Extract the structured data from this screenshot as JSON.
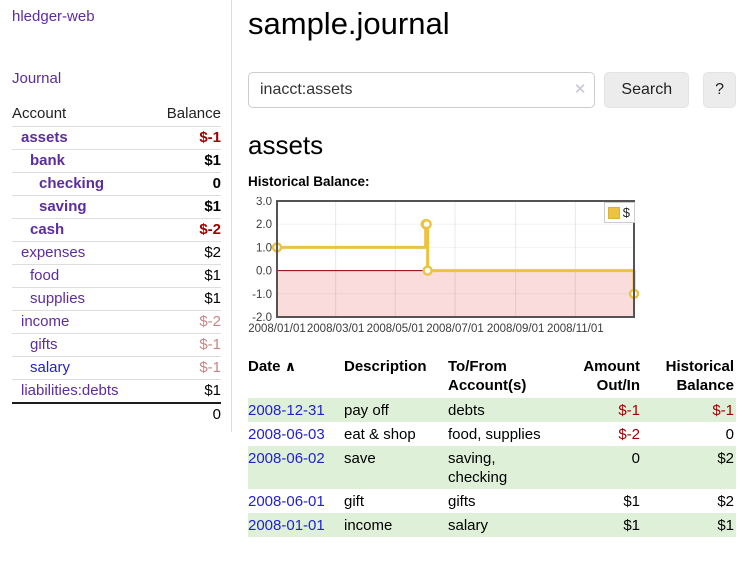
{
  "colors": {
    "link_purple": "#5c2d9e",
    "link_blue": "#2222cc",
    "negative": "#a10000",
    "negative_muted": "#c98585",
    "row_green": "#dff0d8",
    "chart_gold": "#edc240"
  },
  "sidebar": {
    "app_title": "hledger-web",
    "journal_label": "Journal",
    "headers": {
      "account": "Account",
      "balance": "Balance"
    },
    "rows": [
      {
        "name": "assets",
        "level": 1,
        "bold": true,
        "balance": "$-1",
        "balance_class": "neg-strong"
      },
      {
        "name": "bank",
        "level": 2,
        "bold": true,
        "balance": "$1",
        "balance_class": "strong"
      },
      {
        "name": "checking",
        "level": 3,
        "bold": true,
        "balance": "0",
        "balance_class": "strong"
      },
      {
        "name": "saving",
        "level": 3,
        "bold": true,
        "balance": "$1",
        "balance_class": "strong"
      },
      {
        "name": "cash",
        "level": 2,
        "bold": true,
        "balance": "$-2",
        "balance_class": "neg-strong"
      },
      {
        "name": "expenses",
        "level": 1,
        "bold": false,
        "balance": "$2",
        "balance_class": "plain"
      },
      {
        "name": "food",
        "level": 2,
        "bold": false,
        "balance": "$1",
        "balance_class": "plain"
      },
      {
        "name": "supplies",
        "level": 2,
        "bold": false,
        "balance": "$1",
        "balance_class": "plain"
      },
      {
        "name": "income",
        "level": 1,
        "bold": false,
        "balance": "$-2",
        "balance_class": "neg-muted"
      },
      {
        "name": "gifts",
        "level": 2,
        "bold": false,
        "balance": "$-1",
        "balance_class": "neg-muted"
      },
      {
        "name": "salary",
        "level": 2,
        "bold": false,
        "balance": "$-1",
        "balance_class": "neg-muted",
        "link_color": "blue"
      },
      {
        "name": "liabilities:debts",
        "level": 1,
        "bold": false,
        "balance": "$1",
        "balance_class": "plain"
      }
    ],
    "total": "0"
  },
  "main": {
    "title": "sample.journal",
    "search": {
      "value": "inacct:assets",
      "clear_glyph": "✕",
      "button_label": "Search",
      "help_label": "?"
    },
    "account_heading": "assets",
    "chart_label": "Historical Balance:"
  },
  "chart_data": {
    "type": "line",
    "step": true,
    "title": "Historical Balance:",
    "legend": {
      "position": "top-right"
    },
    "series": [
      {
        "name": "$",
        "points": [
          {
            "date": "2008-01-01",
            "day": 0,
            "value": 1
          },
          {
            "date": "2008-06-01",
            "day": 152,
            "value": 2
          },
          {
            "date": "2008-06-02",
            "day": 153,
            "value": 2
          },
          {
            "date": "2008-06-03",
            "day": 154,
            "value": 0
          },
          {
            "date": "2008-12-31",
            "day": 365,
            "value": -1
          }
        ]
      }
    ],
    "y_axis": {
      "range": [
        -2,
        3
      ],
      "ticks": [
        {
          "label": "3.0",
          "value": 3
        },
        {
          "label": "2.0",
          "value": 2
        },
        {
          "label": "1.0",
          "value": 1
        },
        {
          "label": "0.0",
          "value": 0
        },
        {
          "label": "-1.0",
          "value": -1
        },
        {
          "label": "-2.0",
          "value": -2
        }
      ]
    },
    "x_axis": {
      "range_days": [
        0,
        365
      ],
      "ticks": [
        {
          "label": "2008/01/01",
          "day": 0
        },
        {
          "label": "2008/03/01",
          "day": 60
        },
        {
          "label": "2008/05/01",
          "day": 121
        },
        {
          "label": "2008/07/01",
          "day": 182
        },
        {
          "label": "2008/09/01",
          "day": 244
        },
        {
          "label": "2008/11/01",
          "day": 305
        }
      ]
    },
    "colors": {
      "line": "#edc240",
      "negative_region": "#fadcdc",
      "zero_line": "#8b0000",
      "border": "#545454"
    }
  },
  "register": {
    "headers": {
      "date": "Date",
      "sort_icon": "∧",
      "description": "Description",
      "accounts": "To/From Account(s)",
      "amount": "Amount Out/In",
      "balance": "Historical Balance"
    },
    "rows": [
      {
        "date": "2008-12-31",
        "description": "pay off",
        "accounts": "debts",
        "amount": "$-1",
        "amount_neg": true,
        "balance": "$-1",
        "balance_neg": true,
        "shaded": true
      },
      {
        "date": "2008-06-03",
        "description": "eat & shop",
        "accounts": "food, supplies",
        "amount": "$-2",
        "amount_neg": true,
        "balance": "0",
        "balance_neg": false,
        "shaded": false
      },
      {
        "date": "2008-06-02",
        "description": "save",
        "accounts": "saving, checking",
        "amount": "0",
        "amount_neg": false,
        "balance": "$2",
        "balance_neg": false,
        "shaded": true
      },
      {
        "date": "2008-06-01",
        "description": "gift",
        "accounts": "gifts",
        "amount": "$1",
        "amount_neg": false,
        "balance": "$2",
        "balance_neg": false,
        "shaded": false
      },
      {
        "date": "2008-01-01",
        "description": "income",
        "accounts": "salary",
        "amount": "$1",
        "amount_neg": false,
        "balance": "$1",
        "balance_neg": false,
        "shaded": true
      }
    ]
  }
}
